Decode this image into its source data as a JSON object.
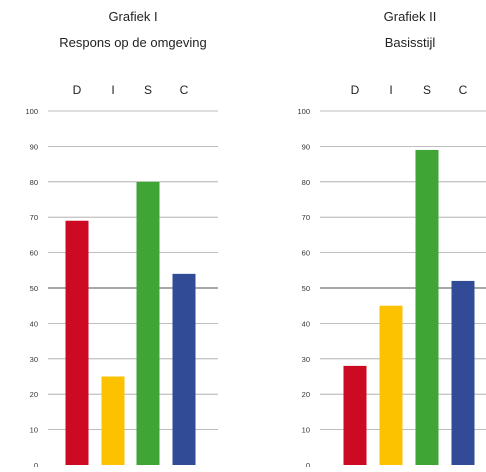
{
  "chart_data": [
    {
      "type": "bar",
      "title": "Grafiek I",
      "subtitle": "Respons op de omgeving",
      "categories": [
        "D",
        "I",
        "S",
        "C"
      ],
      "values": [
        69,
        25,
        80,
        54
      ],
      "colors": [
        "#cc0a23",
        "#fcc200",
        "#3fa535",
        "#324b96"
      ],
      "yticks": [
        0,
        10,
        20,
        30,
        40,
        50,
        60,
        70,
        80,
        90,
        100
      ],
      "ylim": [
        0,
        100
      ],
      "grid": true,
      "midline": 50
    },
    {
      "type": "bar",
      "title": "Grafiek II",
      "subtitle": "Basisstijl",
      "categories": [
        "D",
        "I",
        "S",
        "C"
      ],
      "values": [
        28,
        45,
        89,
        52
      ],
      "colors": [
        "#cc0a23",
        "#fcc200",
        "#3fa535",
        "#324b96"
      ],
      "yticks": [
        0,
        10,
        20,
        30,
        40,
        50,
        60,
        70,
        80,
        90,
        100
      ],
      "ylim": [
        0,
        100
      ],
      "grid": true,
      "midline": 50
    }
  ]
}
